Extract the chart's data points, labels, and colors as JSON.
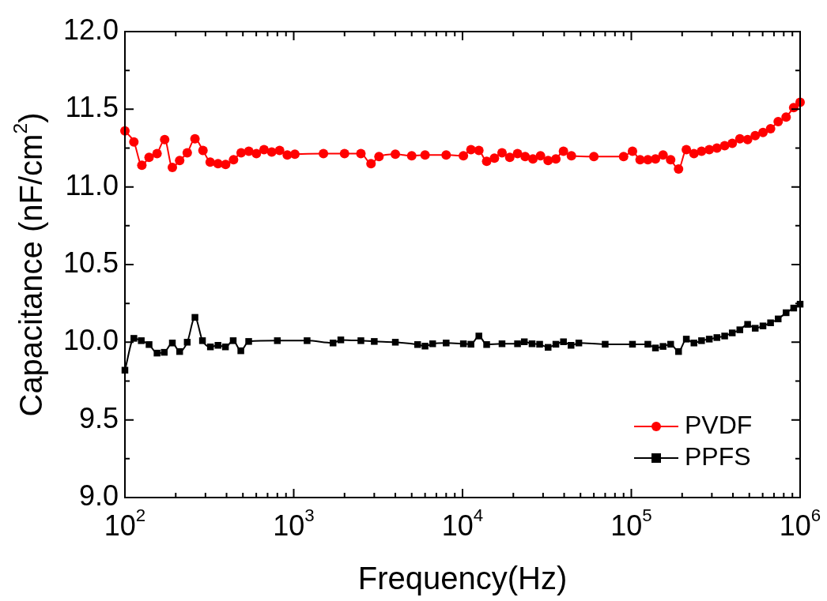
{
  "chart_data": {
    "type": "line",
    "xlabel": "Frequency(Hz)",
    "ylabel": "Capacitance (nF/cm$^{2}$)",
    "log": "x",
    "grid": false,
    "legend": "bottom right",
    "line_style": "solid",
    "xlim": [
      100,
      1000000
    ],
    "ylim": [
      9.0,
      12.0
    ],
    "xticks": [
      {
        "value": 100,
        "label": "10$^{2}$"
      },
      {
        "value": 200,
        "label": null
      },
      {
        "value": 300,
        "label": null
      },
      {
        "value": 400,
        "label": null
      },
      {
        "value": 500,
        "label": null
      },
      {
        "value": 600,
        "label": null
      },
      {
        "value": 700,
        "label": null
      },
      {
        "value": 800,
        "label": null
      },
      {
        "value": 900,
        "label": null
      },
      {
        "value": 1000,
        "label": "10$^{3}$"
      },
      {
        "value": 2000,
        "label": null
      },
      {
        "value": 3000,
        "label": null
      },
      {
        "value": 4000,
        "label": null
      },
      {
        "value": 5000,
        "label": null
      },
      {
        "value": 6000,
        "label": null
      },
      {
        "value": 7000,
        "label": null
      },
      {
        "value": 8000,
        "label": null
      },
      {
        "value": 9000,
        "label": null
      },
      {
        "value": 10000,
        "label": "10$^{4}$"
      },
      {
        "value": 20000,
        "label": null
      },
      {
        "value": 30000,
        "label": null
      },
      {
        "value": 40000,
        "label": null
      },
      {
        "value": 50000,
        "label": null
      },
      {
        "value": 60000,
        "label": null
      },
      {
        "value": 70000,
        "label": null
      },
      {
        "value": 80000,
        "label": null
      },
      {
        "value": 90000,
        "label": null
      },
      {
        "value": 100000,
        "label": "10$^{5}$"
      },
      {
        "value": 200000,
        "label": null
      },
      {
        "value": 300000,
        "label": null
      },
      {
        "value": 400000,
        "label": null
      },
      {
        "value": 500000,
        "label": null
      },
      {
        "value": 600000,
        "label": null
      },
      {
        "value": 700000,
        "label": null
      },
      {
        "value": 800000,
        "label": null
      },
      {
        "value": 900000,
        "label": null
      },
      {
        "value": 1000000,
        "label": "10$^{6}$"
      }
    ],
    "yticks": [
      {
        "value": 9.0,
        "label": "9.0"
      },
      {
        "value": 9.25,
        "label": null
      },
      {
        "value": 9.5,
        "label": "9.5"
      },
      {
        "value": 9.75,
        "label": null
      },
      {
        "value": 10.0,
        "label": "10.0"
      },
      {
        "value": 10.25,
        "label": null
      },
      {
        "value": 10.5,
        "label": "10.5"
      },
      {
        "value": 10.75,
        "label": null
      },
      {
        "value": 11.0,
        "label": "11.0"
      },
      {
        "value": 11.25,
        "label": null
      },
      {
        "value": 11.5,
        "label": "11.5"
      },
      {
        "value": 11.75,
        "label": null
      },
      {
        "value": 12.0,
        "label": "12.0"
      }
    ],
    "series": [
      {
        "name": "PVDF",
        "color": "#ff0000",
        "marker": "circle",
        "x": [
          100,
          113,
          126,
          139,
          155,
          172,
          191,
          211,
          234,
          260,
          290,
          320,
          356,
          395,
          440,
          488,
          542,
          601,
          667,
          741,
          825,
          916,
          1016,
          1500,
          2000,
          2500,
          2870,
          3199,
          4000,
          5000,
          6000,
          8000,
          10120,
          11220,
          12500,
          13900,
          15450,
          17140,
          19050,
          21180,
          23500,
          26120,
          28970,
          32140,
          35730,
          39630,
          44160,
          60000,
          90000,
          101600,
          112700,
          125300,
          139000,
          154200,
          171000,
          190500,
          211800,
          235000,
          260600,
          289700,
          321400,
          357300,
          396300,
          439500,
          488700,
          542000,
          602600,
          668300,
          741300,
          826000,
          916200,
          1000000
        ],
        "values": [
          11.36,
          11.29,
          11.14,
          11.19,
          11.215,
          11.305,
          11.125,
          11.17,
          11.22,
          11.31,
          11.235,
          11.16,
          11.15,
          11.145,
          11.175,
          11.22,
          11.23,
          11.215,
          11.24,
          11.225,
          11.235,
          11.205,
          11.21,
          11.215,
          11.215,
          11.215,
          11.15,
          11.195,
          11.21,
          11.2,
          11.205,
          11.205,
          11.2,
          11.24,
          11.235,
          11.165,
          11.185,
          11.22,
          11.19,
          11.215,
          11.195,
          11.18,
          11.2,
          11.17,
          11.18,
          11.23,
          11.2,
          11.195,
          11.195,
          11.23,
          11.175,
          11.175,
          11.18,
          11.205,
          11.175,
          11.115,
          11.24,
          11.215,
          11.23,
          11.24,
          11.25,
          11.265,
          11.28,
          11.31,
          11.305,
          11.33,
          11.35,
          11.375,
          11.42,
          11.45,
          11.51,
          11.545
        ]
      },
      {
        "name": "PPFS",
        "color": "#000000",
        "marker": "square",
        "x": [
          100,
          113,
          125,
          139,
          155,
          171,
          191,
          211,
          234,
          260,
          288,
          321,
          356,
          394,
          438,
          486,
          541,
          800,
          1200,
          1710,
          1901,
          2500,
          3000,
          4000,
          5420,
          5998,
          6653,
          8000,
          10120,
          11220,
          12500,
          13900,
          17140,
          21180,
          23230,
          25820,
          28640,
          32140,
          35730,
          39630,
          43950,
          48870,
          70000,
          101600,
          125300,
          139000,
          154200,
          171000,
          190500,
          211800,
          235000,
          260600,
          289700,
          321400,
          357300,
          396300,
          439500,
          488700,
          542000,
          602600,
          668300,
          741300,
          826000,
          916200,
          1000000
        ],
        "values": [
          9.82,
          10.025,
          10.01,
          9.985,
          9.93,
          9.935,
          9.995,
          9.94,
          10.0,
          10.16,
          10.01,
          9.97,
          9.98,
          9.97,
          10.01,
          9.945,
          10.005,
          10.01,
          10.01,
          9.995,
          10.015,
          10.01,
          10.005,
          10.0,
          9.985,
          9.975,
          9.99,
          9.995,
          9.99,
          9.987,
          10.04,
          9.985,
          9.99,
          9.99,
          10.003,
          9.99,
          9.987,
          9.967,
          9.987,
          10.003,
          9.98,
          9.995,
          9.987,
          9.987,
          9.987,
          9.963,
          9.973,
          9.987,
          9.94,
          10.02,
          9.995,
          10.01,
          10.02,
          10.03,
          10.04,
          10.06,
          10.08,
          10.115,
          10.09,
          10.105,
          10.125,
          10.15,
          10.19,
          10.22,
          10.245
        ]
      }
    ]
  }
}
